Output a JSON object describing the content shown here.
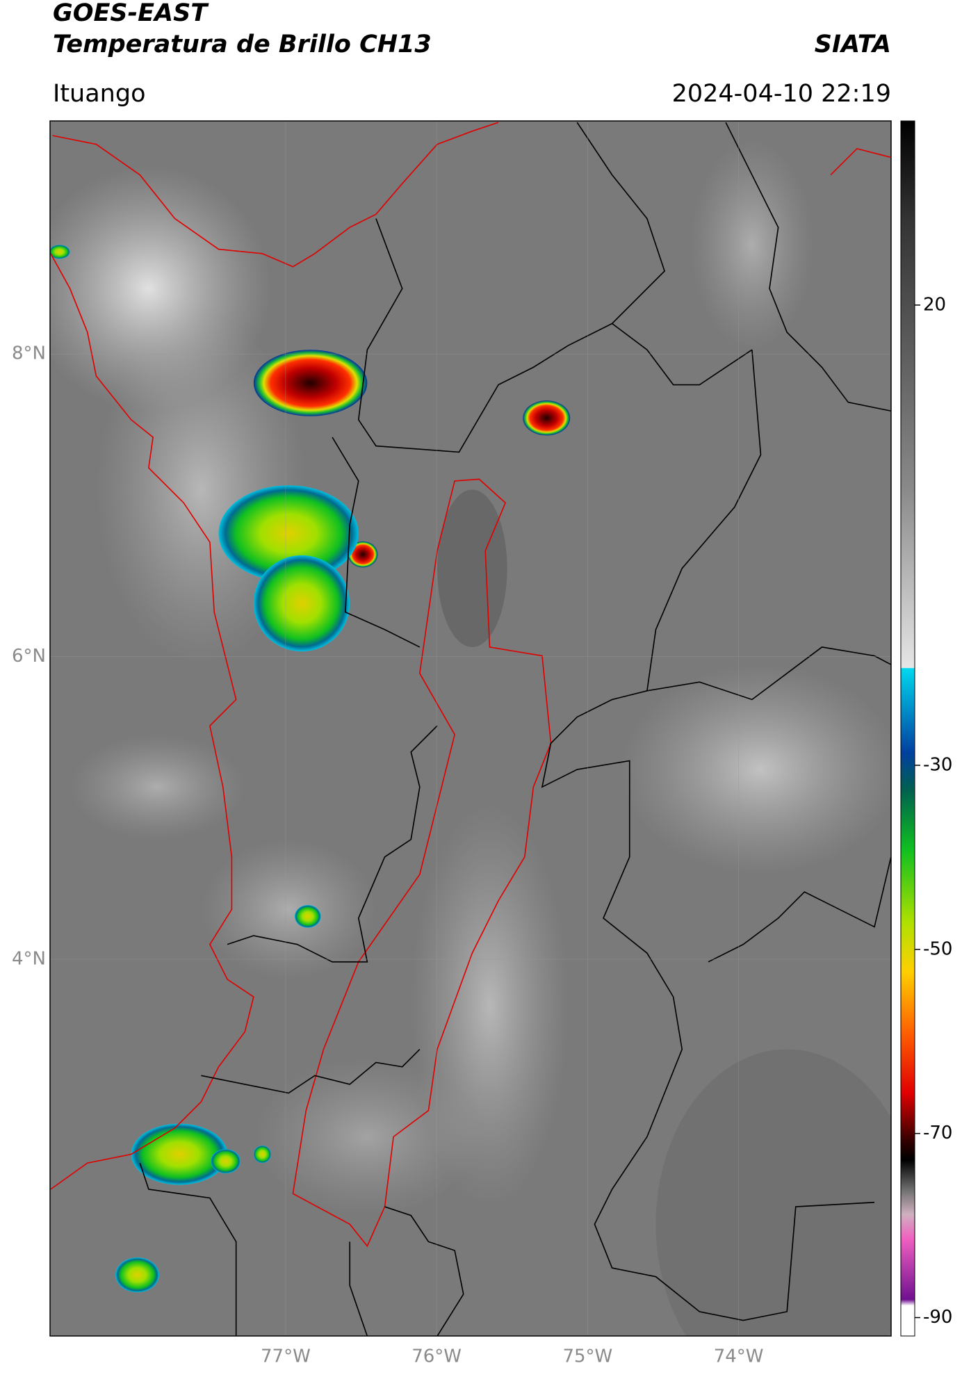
{
  "header": {
    "title_line1": "GOES-EAST",
    "title_line2": "Temperatura de Brillo CH13",
    "agency": "SIATA",
    "location": "Ituango",
    "datetime": "2024-04-10 22:19"
  },
  "map": {
    "xlim": [
      -78.56,
      -72.99
    ],
    "ylim": [
      1.51,
      9.54
    ],
    "xticks": [
      {
        "value": -77,
        "label": "77°W"
      },
      {
        "value": -76,
        "label": "76°W"
      },
      {
        "value": -75,
        "label": "75°W"
      },
      {
        "value": -74,
        "label": "74°W"
      }
    ],
    "yticks": [
      {
        "value": 8,
        "label": "8°N"
      },
      {
        "value": 6,
        "label": "6°N"
      },
      {
        "value": 4,
        "label": "4°N"
      }
    ]
  },
  "colorbar": {
    "lim": [
      -92,
      40
    ],
    "ticks": [
      20,
      -30,
      -50,
      -70,
      -90
    ]
  }
}
